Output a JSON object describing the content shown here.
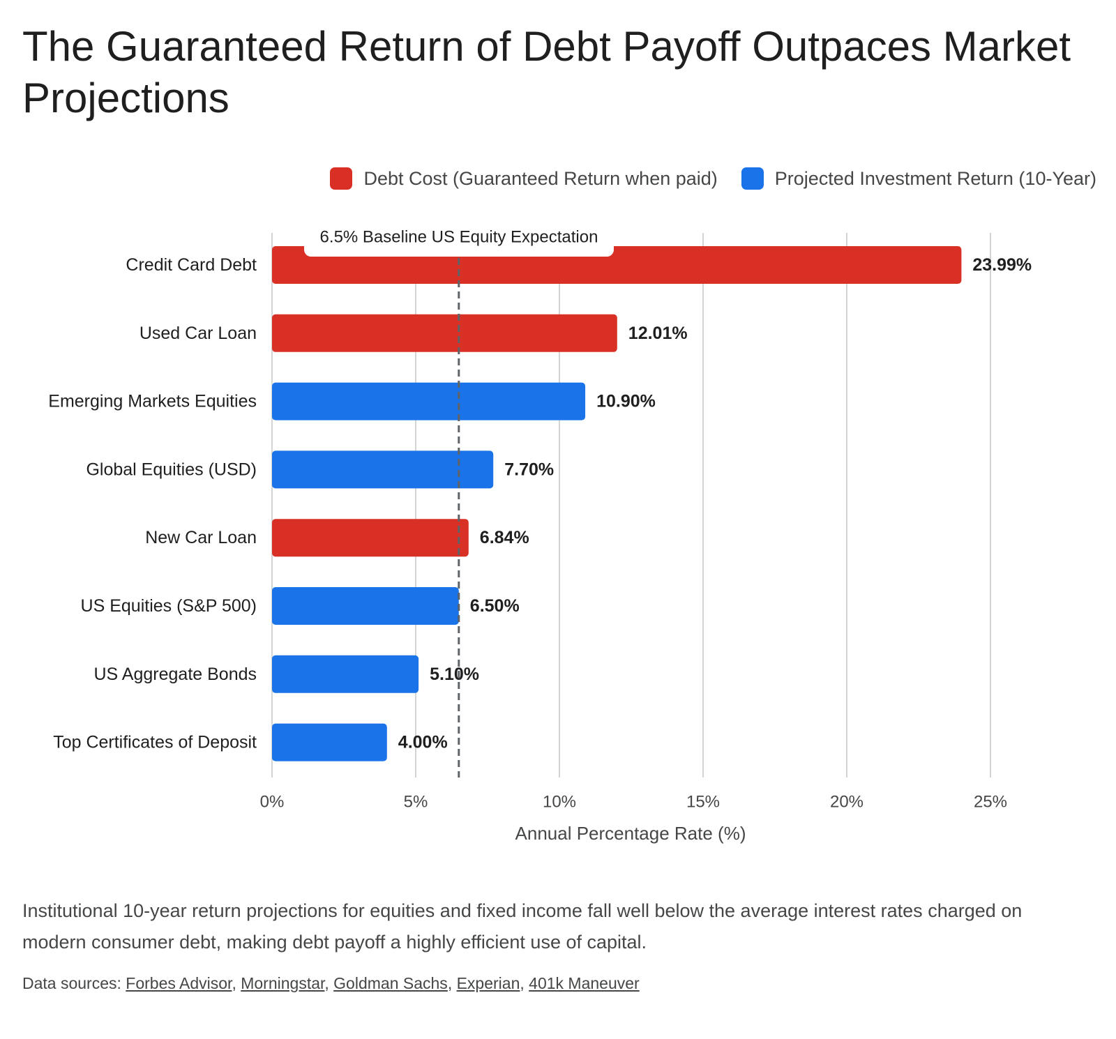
{
  "title": "The Guaranteed Return of Debt Payoff Outpaces Market Projections",
  "legend": {
    "items": [
      {
        "label": "Debt Cost (Guaranteed Return when paid)",
        "color": "#d93025"
      },
      {
        "label": "Projected Investment Return (10-Year)",
        "color": "#1a73e8"
      }
    ]
  },
  "chart_data": {
    "type": "bar",
    "orientation": "horizontal",
    "categories": [
      "Credit Card Debt",
      "Used Car Loan",
      "Emerging Markets Equities",
      "Global Equities (USD)",
      "New Car Loan",
      "US Equities (S&P 500)",
      "US Aggregate Bonds",
      "Top Certificates of Deposit"
    ],
    "values": [
      23.99,
      12.01,
      10.9,
      7.7,
      6.84,
      6.5,
      5.1,
      4.0
    ],
    "value_labels": [
      "23.99%",
      "12.01%",
      "10.90%",
      "7.70%",
      "6.84%",
      "6.50%",
      "5.10%",
      "4.00%"
    ],
    "groups": [
      "Debt Cost (Guaranteed Return when paid)",
      "Debt Cost (Guaranteed Return when paid)",
      "Projected Investment Return (10-Year)",
      "Projected Investment Return (10-Year)",
      "Debt Cost (Guaranteed Return when paid)",
      "Projected Investment Return (10-Year)",
      "Projected Investment Return (10-Year)",
      "Projected Investment Return (10-Year)"
    ],
    "group_colors": {
      "Debt Cost (Guaranteed Return when paid)": "#d93025",
      "Projected Investment Return (10-Year)": "#1a73e8"
    },
    "xlabel": "Annual Percentage Rate (%)",
    "ylabel": "",
    "xlim": [
      0,
      25
    ],
    "xticks": [
      0,
      5,
      10,
      15,
      20,
      25
    ],
    "xtick_labels": [
      "0%",
      "5%",
      "10%",
      "15%",
      "20%",
      "25%"
    ],
    "grid": true,
    "legend_position": "top-right",
    "reference_line": {
      "value": 6.5,
      "label": "6.5% Baseline US Equity Expectation",
      "style": "dashed"
    }
  },
  "caption": "Institutional 10-year return projections for equities and fixed income fall well below the average interest rates charged on modern consumer debt, making debt payoff a highly efficient use of capital.",
  "sources": {
    "prefix": "Data sources: ",
    "links": [
      "Forbes Advisor",
      "Morningstar",
      "Goldman Sachs",
      "Experian",
      "401k Maneuver"
    ]
  }
}
